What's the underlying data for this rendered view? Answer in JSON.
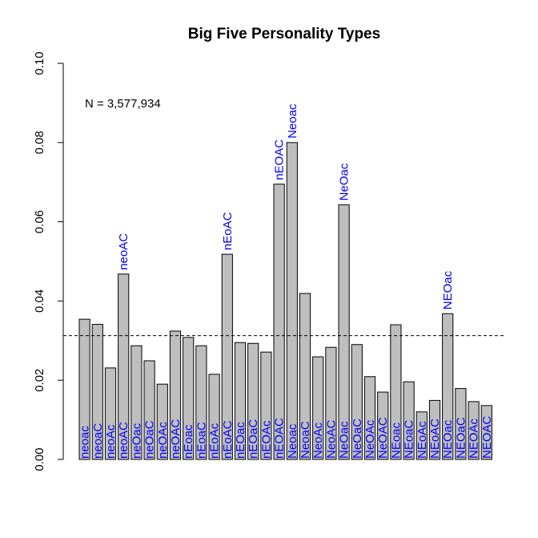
{
  "chart_data": {
    "type": "bar",
    "title": "Big Five Personality Types",
    "annotation": "N = 3,577,934",
    "xlabel": "",
    "ylabel": "",
    "ylim": [
      0,
      0.1
    ],
    "yticks": [
      0.0,
      0.02,
      0.04,
      0.06,
      0.08,
      0.1
    ],
    "ytick_labels": [
      "0.00",
      "0.02",
      "0.04",
      "0.06",
      "0.08",
      "0.10"
    ],
    "reference_line": 0.03125,
    "bar_color": "#bebebe",
    "label_color": "#0000ff",
    "categories": [
      "neoac",
      "neoaC",
      "neoAc",
      "neoAC",
      "neOac",
      "neOaC",
      "neOAc",
      "neOAC",
      "nEoac",
      "nEoaC",
      "nEoAc",
      "nEoAC",
      "nEOac",
      "nEOaC",
      "nEOAc",
      "nEOAC",
      "Neoac",
      "NeoaC",
      "NeoAc",
      "NeoAC",
      "NeOac",
      "NeOaC",
      "NeOAc",
      "NeOAC",
      "NEoac",
      "NEoaC",
      "NEoAc",
      "NEoAC",
      "NEOac",
      "NEOaC",
      "NEOAc",
      "NEOAC"
    ],
    "values": [
      0.0354,
      0.0341,
      0.0231,
      0.0468,
      0.0287,
      0.0249,
      0.019,
      0.0324,
      0.0308,
      0.0287,
      0.0215,
      0.0518,
      0.0295,
      0.0293,
      0.0271,
      0.0695,
      0.08,
      0.0419,
      0.0259,
      0.0283,
      0.0643,
      0.029,
      0.0209,
      0.017,
      0.034,
      0.0196,
      0.012,
      0.0149,
      0.0368,
      0.0179,
      0.0146,
      0.0136
    ],
    "top_labels": [
      {
        "index": 3,
        "text": "neoAC"
      },
      {
        "index": 11,
        "text": "nEoAC"
      },
      {
        "index": 15,
        "text": "nEOAC"
      },
      {
        "index": 16,
        "text": "Neoac"
      },
      {
        "index": 20,
        "text": "NeOac"
      },
      {
        "index": 28,
        "text": "NEOac"
      }
    ]
  }
}
